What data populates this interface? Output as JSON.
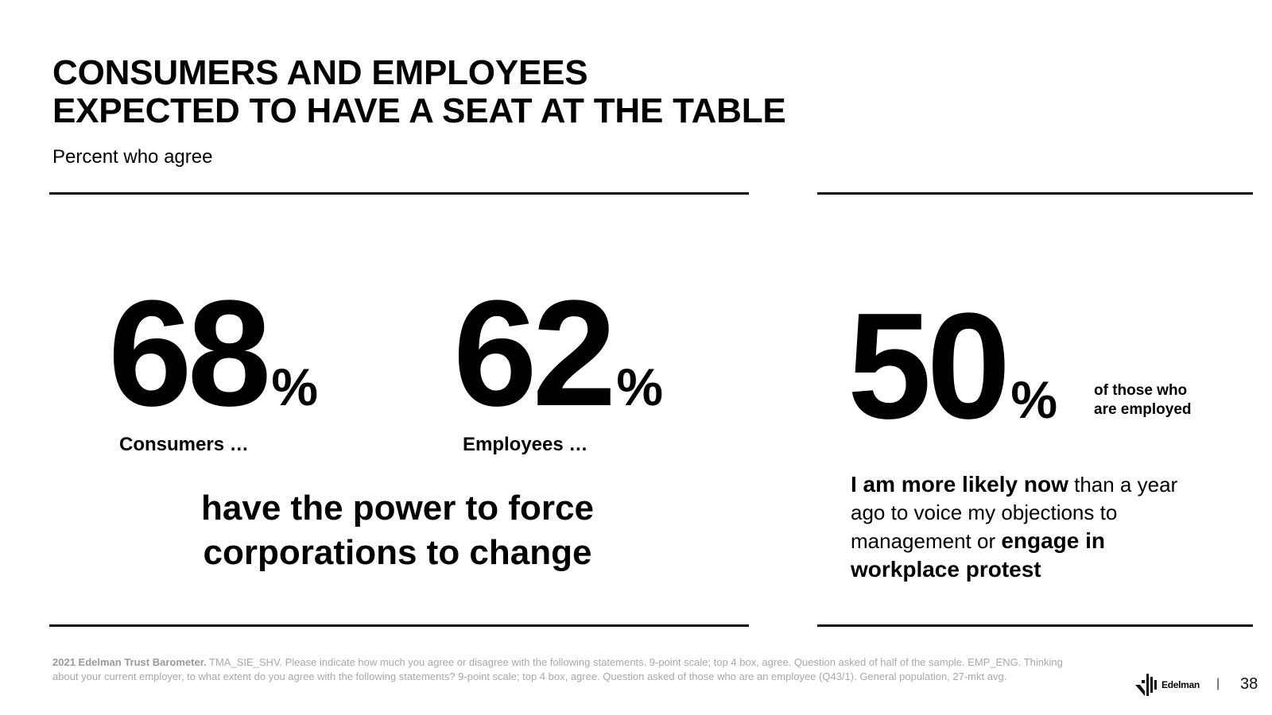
{
  "slide": {
    "title_lines": [
      "CONSUMERS AND EMPLOYEES",
      "EXPECTED TO HAVE A SEAT AT THE TABLE"
    ],
    "subtitle": "Percent who agree"
  },
  "left_panel": {
    "stats": [
      {
        "value": "68",
        "unit": "%",
        "label": "Consumers …"
      },
      {
        "value": "62",
        "unit": "%",
        "label": "Employees …"
      }
    ],
    "statement_lines": [
      "have the power to force",
      "corporations to change"
    ]
  },
  "right_panel": {
    "stat": {
      "value": "50",
      "unit": "%"
    },
    "note_lines": [
      "of those who",
      "are employed"
    ],
    "quote": {
      "bold_1": "I am more likely now",
      "text_1": " than a year ago to voice my objections to management  or ",
      "bold_2": "engage in workplace protest"
    }
  },
  "footer": {
    "source_bold": "2021 Edelman Trust Barometer.",
    "source_text": " TMA_SIE_SHV.  Please indicate how much you agree or disagree with the following statements. 9-point scale; top 4 box, agree. Question asked of half of the sample. EMP_ENG. Thinking about your current employer, to what extent do you agree with the following statements? 9-point scale; top 4 box, agree. Question asked of those who are an employee (Q43/1). General population, 27-mkt avg.",
    "logo_text": "Edelman",
    "separator": "|",
    "page_number": "38"
  }
}
